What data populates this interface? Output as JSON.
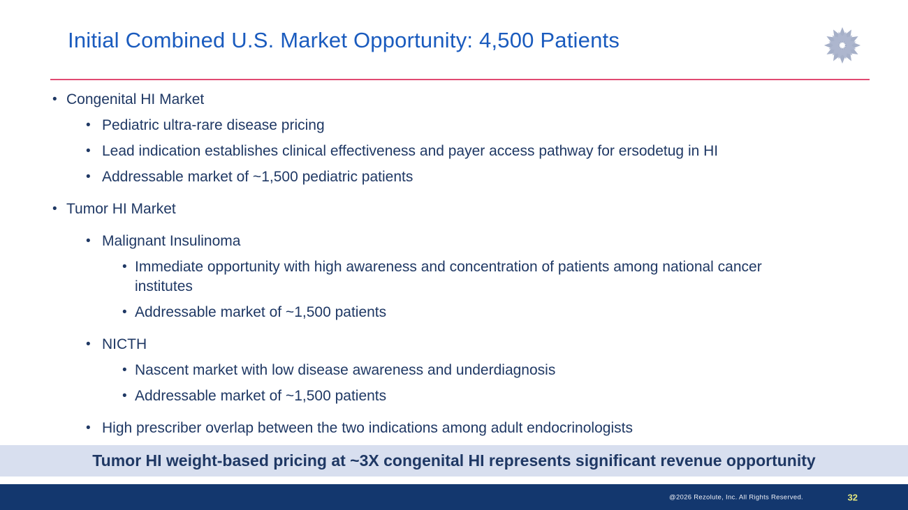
{
  "header": {
    "title": "Initial Combined U.S. Market Opportunity: 4,500 Patients"
  },
  "logo": {
    "icon": "lotus-mandala-icon",
    "color": "#A2ACC6"
  },
  "bullets": [
    {
      "level": 1,
      "group_start": false,
      "text": "Congenital HI Market"
    },
    {
      "level": 2,
      "group_start": false,
      "text": "Pediatric ultra-rare disease pricing"
    },
    {
      "level": 2,
      "group_start": false,
      "text": "Lead indication establishes clinical effectiveness and payer access pathway for ersodetug in HI"
    },
    {
      "level": 2,
      "group_start": false,
      "text": "Addressable market of ~1,500 pediatric patients"
    },
    {
      "level": 1,
      "group_start": true,
      "text": "Tumor HI Market"
    },
    {
      "level": 2,
      "group_start": true,
      "text": "Malignant Insulinoma"
    },
    {
      "level": 3,
      "group_start": false,
      "text": "Immediate opportunity with high awareness and concentration of patients among national cancer institutes"
    },
    {
      "level": 3,
      "group_start": false,
      "text": "Addressable market of ~1,500 patients"
    },
    {
      "level": 2,
      "group_start": true,
      "text": "NICTH"
    },
    {
      "level": 3,
      "group_start": false,
      "text": "Nascent market with low disease awareness and underdiagnosis"
    },
    {
      "level": 3,
      "group_start": false,
      "text": "Addressable market of ~1,500 patients"
    },
    {
      "level": 2,
      "group_start": true,
      "text": "High prescriber overlap between the two indications among adult endocrinologists"
    }
  ],
  "banner": {
    "text": "Tumor HI weight-based pricing at ~3X congenital HI represents significant revenue opportunity"
  },
  "footer": {
    "copyright": "@2026 Rezolute, Inc. All Rights Reserved.",
    "page_number": "32"
  },
  "colors": {
    "title_blue": "#1A5BBE",
    "body_navy": "#1F3864",
    "divider_pink": "#E14A72",
    "banner_bg": "#D8DFEF",
    "banner_text": "#1F3864",
    "footer_bg": "#13376E",
    "footer_text": "#F0F2F8",
    "page_number_yellow": "#E4E77E",
    "logo_gray_blue": "#A2ACC6"
  }
}
